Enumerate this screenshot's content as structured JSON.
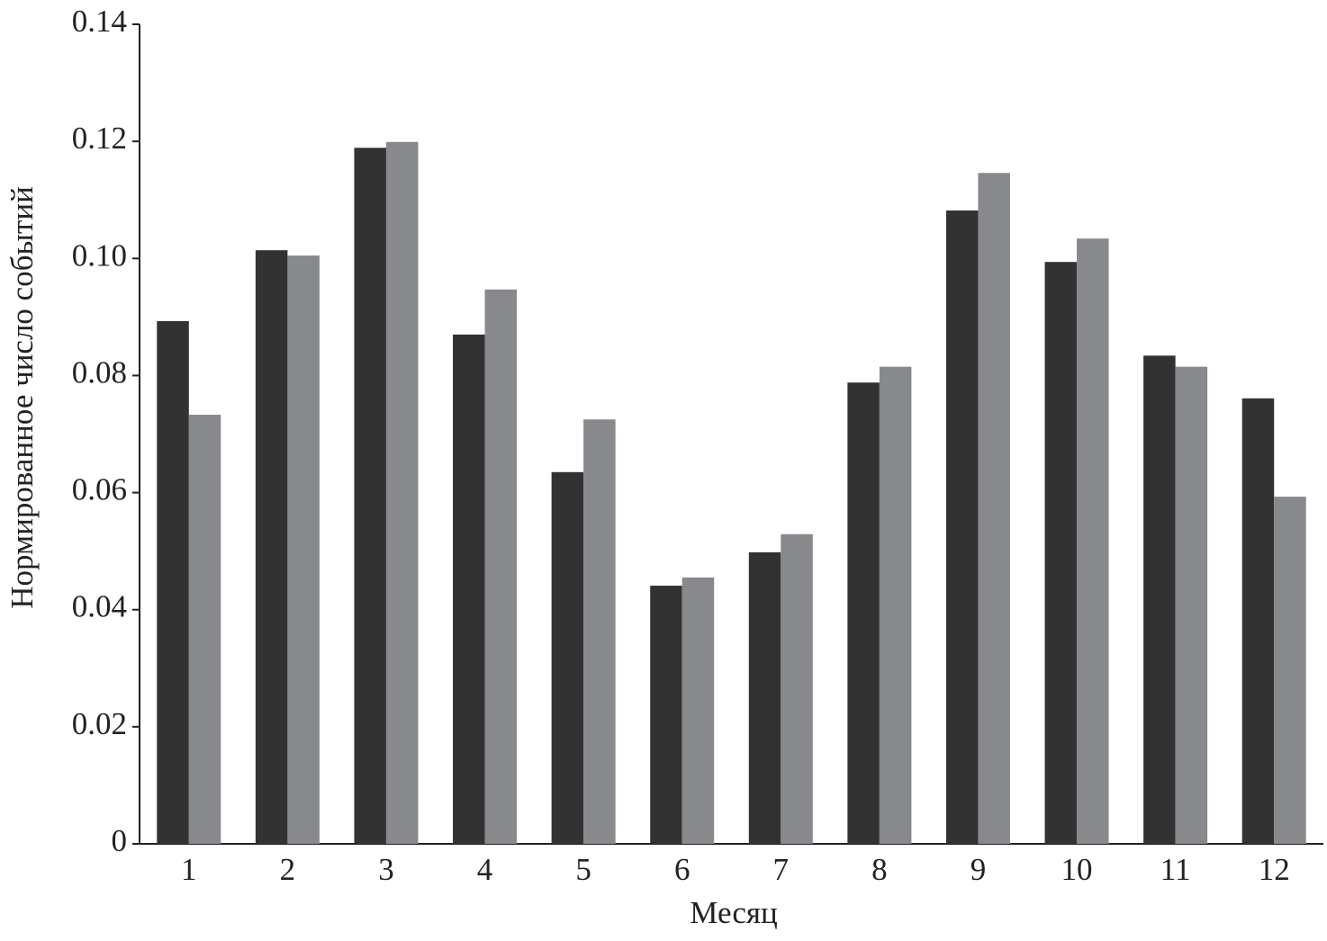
{
  "chart_data": {
    "type": "bar",
    "xlabel": "Месяц",
    "ylabel": "Нормированное число событий",
    "categories": [
      "1",
      "2",
      "3",
      "4",
      "5",
      "6",
      "7",
      "8",
      "9",
      "10",
      "11",
      "12"
    ],
    "series": [
      {
        "color": "#333233",
        "values": [
          0.0893,
          0.1014,
          0.1189,
          0.087,
          0.0635,
          0.0441,
          0.0498,
          0.0788,
          0.1082,
          0.0994,
          0.0834,
          0.0761
        ]
      },
      {
        "color": "#88898d",
        "values": [
          0.0733,
          0.1005,
          0.1199,
          0.0947,
          0.0725,
          0.0455,
          0.0529,
          0.0815,
          0.1146,
          0.1034,
          0.0815,
          0.0593
        ]
      }
    ],
    "ylim": [
      0,
      0.14
    ],
    "yticks": [
      0,
      0.02,
      0.04,
      0.06,
      0.08,
      {
        "value": 0.1,
        "label": "0.10"
      },
      0.12,
      0.14
    ]
  }
}
